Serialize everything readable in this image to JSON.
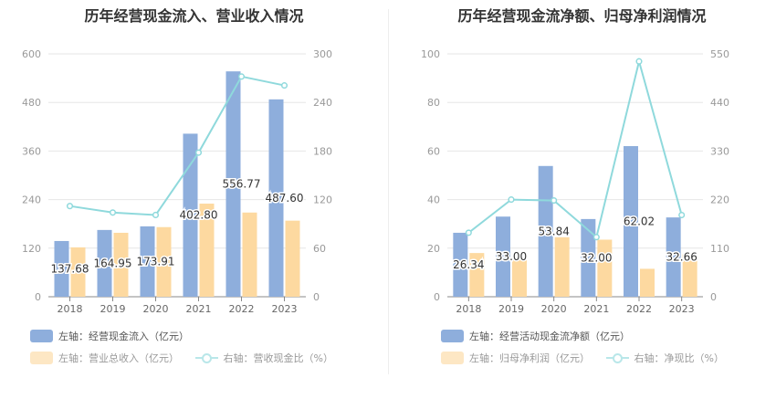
{
  "colors": {
    "bar1": "#8eaedc",
    "bar2": "#fdd9a0",
    "line": "#8fd9dc",
    "grid": "#e6e6e6",
    "axis": "#999999"
  },
  "chart_data": [
    {
      "type": "bar",
      "title": "历年经营现金流入、营业收入情况",
      "categories": [
        "2018",
        "2019",
        "2020",
        "2021",
        "2022",
        "2023"
      ],
      "left_ylim": [
        0,
        600
      ],
      "left_ticks": [
        "0",
        "120",
        "240",
        "360",
        "480",
        "600"
      ],
      "right_ylim": [
        0,
        300
      ],
      "right_ticks": [
        "0",
        "60",
        "120",
        "180",
        "240",
        "300"
      ],
      "series": [
        {
          "name": "左轴：经营现金流入（亿元）",
          "type": "bar",
          "axis": "left",
          "values": [
            137.68,
            164.95,
            173.91,
            402.8,
            556.77,
            487.6
          ],
          "labels": [
            "137.68",
            "164.95",
            "173.91",
            "402.80",
            "556.77",
            "487.60"
          ]
        },
        {
          "name": "左轴：营业总收入（亿元）",
          "type": "bar",
          "axis": "left",
          "values": [
            122,
            158,
            172,
            230,
            208,
            188
          ]
        },
        {
          "name": "右轴：营收现金比（%）",
          "type": "line",
          "axis": "right",
          "values": [
            112,
            104,
            101,
            178,
            272,
            261
          ]
        }
      ]
    },
    {
      "type": "bar",
      "title": "历年经营现金流净额、归母净利润情况",
      "categories": [
        "2018",
        "2019",
        "2020",
        "2021",
        "2022",
        "2023"
      ],
      "left_ylim": [
        0,
        100
      ],
      "left_ticks": [
        "0",
        "20",
        "40",
        "60",
        "80",
        "100"
      ],
      "right_ylim": [
        0,
        550
      ],
      "right_ticks": [
        "0",
        "110",
        "220",
        "330",
        "440",
        "550"
      ],
      "series": [
        {
          "name": "左轴：经营活动现金流净额（亿元）",
          "type": "bar",
          "axis": "left",
          "values": [
            26.34,
            33.0,
            53.84,
            32.0,
            62.02,
            32.66
          ],
          "labels": [
            "26.34",
            "33.00",
            "53.84",
            "32.00",
            "62.02",
            "32.66"
          ]
        },
        {
          "name": "左轴：归母净利润（亿元）",
          "type": "bar",
          "axis": "left",
          "values": [
            18,
            15,
            24.5,
            23.5,
            11.5,
            17.5
          ]
        },
        {
          "name": "右轴：净现比（%）",
          "type": "line",
          "axis": "right",
          "values": [
            145,
            220,
            218,
            135,
            533,
            185
          ]
        }
      ]
    }
  ]
}
